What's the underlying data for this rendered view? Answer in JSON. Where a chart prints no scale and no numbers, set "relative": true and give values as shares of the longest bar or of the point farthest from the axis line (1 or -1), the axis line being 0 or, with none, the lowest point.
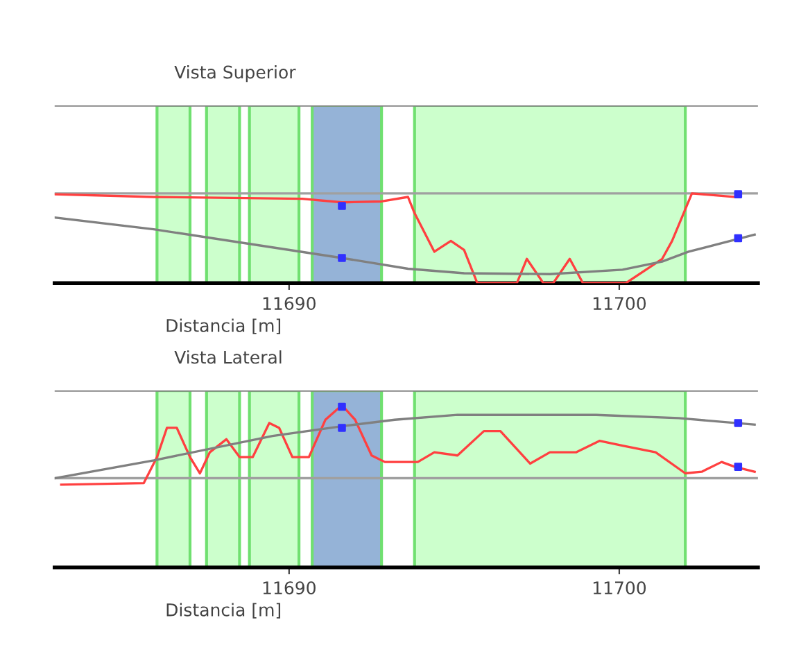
{
  "chart_data": [
    {
      "type": "line",
      "title": "Vista Superior",
      "xlabel": "Distancia [m]",
      "relative": true,
      "xlim": [
        11682.9,
        11704.2
      ],
      "xticks": [
        11690,
        11700
      ],
      "tick_labels": "x",
      "grid": false,
      "legend": false,
      "bands": [
        {
          "axis": "x",
          "from": 11686.0,
          "to": 11687.0,
          "color": "#ccffcc"
        },
        {
          "axis": "x",
          "from": 11687.5,
          "to": 11688.5,
          "color": "#ccffcc"
        },
        {
          "axis": "x",
          "from": 11688.8,
          "to": 11690.3,
          "color": "#ccffcc"
        },
        {
          "axis": "x",
          "from": 11690.7,
          "to": 11692.8,
          "color": "#95b3d7"
        },
        {
          "axis": "x",
          "from": 11693.8,
          "to": 11702.0,
          "color": "#ccffcc"
        }
      ],
      "ref_lines": [
        {
          "axis": "y",
          "value": 1.0,
          "color": "#a0a0a0"
        },
        {
          "axis": "y",
          "value": 1.98,
          "color": "#808080"
        }
      ],
      "series": [
        {
          "type": "line",
          "color": "#ff4040",
          "x": [
            11682.9,
            11685.9,
            11690.4,
            11691.6,
            11692.8,
            11693.6,
            11693.8,
            11694.4,
            11694.9,
            11695.3,
            11695.7,
            11696.9,
            11697.2,
            11697.7,
            11698.0,
            11698.5,
            11698.9,
            11700.2,
            11701.3,
            11701.6,
            11702.2,
            11703.5
          ],
          "values": [
            0.99,
            0.96,
            0.94,
            0.9,
            0.91,
            0.96,
            0.78,
            0.35,
            0.47,
            0.37,
            0,
            0,
            0.27,
            0,
            0,
            0.27,
            0,
            0,
            0.27,
            0.47,
            1.0,
            0.96
          ]
        },
        {
          "type": "line",
          "color": "#808080",
          "x": [
            11682.9,
            11685.9,
            11691.6,
            11693.6,
            11695.3,
            11697.9,
            11700.1,
            11701.3,
            11702.1,
            11704.1
          ],
          "values": [
            0.73,
            0.6,
            0.28,
            0.16,
            0.11,
            0.1,
            0.15,
            0.24,
            0.35,
            0.54
          ]
        },
        {
          "type": "scatter",
          "color": "#3030ff",
          "marker": "square",
          "x": [
            11691.6,
            11691.6,
            11703.6,
            11703.6
          ],
          "values": [
            0.86,
            0.28,
            0.99,
            0.5
          ]
        }
      ]
    },
    {
      "type": "line",
      "title": "Vista Lateral",
      "xlabel": "Distancia [m]",
      "relative": true,
      "xlim": [
        11682.9,
        11704.2
      ],
      "xticks": [
        11690,
        11700
      ],
      "tick_labels": "x",
      "grid": false,
      "legend": false,
      "bands": [
        {
          "axis": "x",
          "from": 11686.0,
          "to": 11687.0,
          "color": "#ccffcc"
        },
        {
          "axis": "x",
          "from": 11687.5,
          "to": 11688.5,
          "color": "#ccffcc"
        },
        {
          "axis": "x",
          "from": 11688.8,
          "to": 11690.3,
          "color": "#ccffcc"
        },
        {
          "axis": "x",
          "from": 11690.7,
          "to": 11692.8,
          "color": "#95b3d7"
        },
        {
          "axis": "x",
          "from": 11693.8,
          "to": 11702.0,
          "color": "#ccffcc"
        }
      ],
      "ref_lines": [
        {
          "axis": "y",
          "value": 0.55,
          "color": "#a0a0a0"
        },
        {
          "axis": "y",
          "value": 1.09,
          "color": "#808080"
        }
      ],
      "series": [
        {
          "type": "line",
          "color": "#ff4040",
          "x": [
            11683.1,
            11685.6,
            11686.0,
            11686.3,
            11686.6,
            11687.0,
            11687.3,
            11687.6,
            11688.1,
            11688.5,
            11688.9,
            11689.4,
            11689.7,
            11690.1,
            11690.6,
            11691.1,
            11691.6,
            11692.0,
            11692.5,
            11692.9,
            11693.9,
            11694.4,
            11695.1,
            11695.9,
            11696.4,
            11697.3,
            11697.9,
            11698.7,
            11699.4,
            11700.1,
            11701.1,
            11702.0,
            11702.5,
            11703.1,
            11703.5,
            11704.1
          ],
          "values": [
            0.51,
            0.52,
            0.68,
            0.86,
            0.86,
            0.68,
            0.58,
            0.71,
            0.79,
            0.68,
            0.68,
            0.89,
            0.86,
            0.68,
            0.68,
            0.91,
            1.0,
            0.91,
            0.69,
            0.65,
            0.65,
            0.71,
            0.69,
            0.84,
            0.84,
            0.64,
            0.71,
            0.71,
            0.78,
            0.75,
            0.71,
            0.58,
            0.59,
            0.65,
            0.62,
            0.59
          ]
        },
        {
          "type": "line",
          "color": "#808080",
          "x": [
            11682.9,
            11685.9,
            11689.5,
            11691.6,
            11693.2,
            11695.1,
            11699.3,
            11701.8,
            11704.1
          ],
          "values": [
            0.55,
            0.66,
            0.81,
            0.87,
            0.91,
            0.94,
            0.94,
            0.92,
            0.88
          ]
        },
        {
          "type": "scatter",
          "color": "#3030ff",
          "marker": "square",
          "x": [
            11691.6,
            11691.6,
            11703.6,
            11703.6
          ],
          "values": [
            0.99,
            0.86,
            0.89,
            0.62
          ]
        }
      ]
    }
  ]
}
